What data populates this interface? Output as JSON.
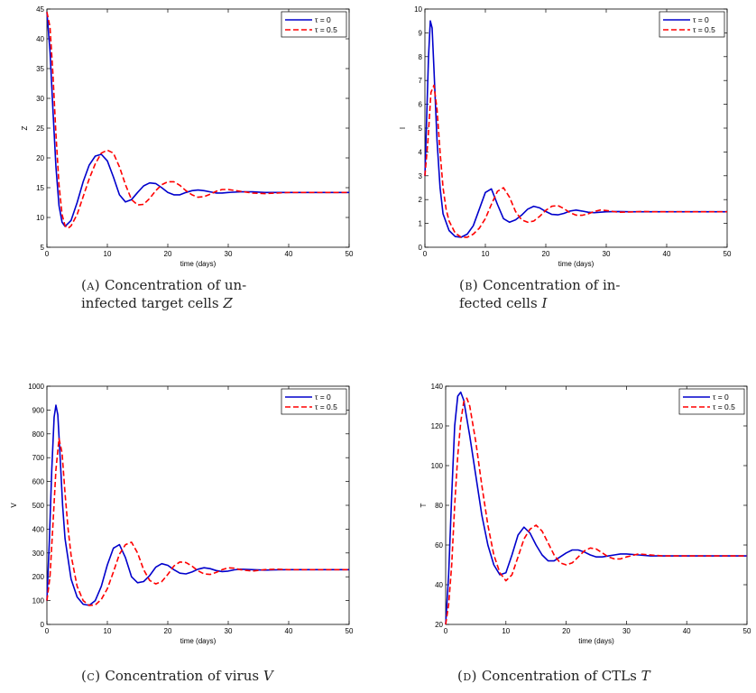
{
  "chart_data": [
    {
      "type": "line",
      "panel_tag": "(a)",
      "caption_lines": [
        "Concentration of un-",
        "infected target cells"
      ],
      "caption_var": "Z",
      "xlabel": "time (days)",
      "ylabel": "Z",
      "xlim": [
        0,
        50
      ],
      "ylim": [
        5,
        45
      ],
      "xticks": [
        0,
        10,
        20,
        30,
        40,
        50
      ],
      "yticks": [
        5,
        10,
        15,
        20,
        25,
        30,
        35,
        40,
        45
      ],
      "legend_position": "top-right",
      "series": [
        {
          "name": "τ = 0",
          "color": "#0000cc",
          "style": "solid",
          "x": [
            0,
            0.5,
            1,
            1.5,
            2,
            2.5,
            3,
            4,
            5,
            6,
            7,
            8,
            9,
            10,
            11,
            12,
            13,
            14,
            15,
            16,
            17,
            18,
            19,
            20,
            21,
            22,
            23,
            24,
            25,
            26,
            27,
            28,
            29,
            30,
            32,
            34,
            36,
            38,
            40,
            42,
            44,
            46,
            48,
            50
          ],
          "y": [
            44.5,
            38,
            28,
            18.5,
            12,
            9.2,
            8.5,
            9.5,
            12.5,
            16,
            18.8,
            20.3,
            20.6,
            19.5,
            16.8,
            13.8,
            12.6,
            13,
            14.2,
            15.3,
            15.8,
            15.7,
            15,
            14.2,
            13.8,
            13.8,
            14.2,
            14.5,
            14.6,
            14.5,
            14.3,
            14.1,
            14.1,
            14.2,
            14.3,
            14.3,
            14.2,
            14.2,
            14.2,
            14.2,
            14.2,
            14.2,
            14.2,
            14.2
          ]
        },
        {
          "name": "τ = 0.5",
          "color": "#ff0000",
          "style": "dashed",
          "x": [
            0,
            0.5,
            1,
            1.5,
            2,
            2.5,
            3,
            3.5,
            4,
            5,
            6,
            7,
            8,
            9,
            10,
            11,
            12,
            13,
            14,
            15,
            16,
            17,
            18,
            19,
            20,
            21,
            22,
            23,
            24,
            25,
            26,
            27,
            28,
            29,
            30,
            32,
            34,
            36,
            38,
            40,
            42,
            44,
            46,
            48,
            50
          ],
          "y": [
            44.5,
            42,
            34,
            24,
            15.5,
            10.5,
            8.6,
            8.2,
            8.6,
            10.5,
            13.5,
            16.5,
            19,
            20.8,
            21.3,
            20.8,
            18.5,
            15.5,
            13,
            12.1,
            12.2,
            13.2,
            14.5,
            15.5,
            16,
            16,
            15.4,
            14.5,
            13.8,
            13.4,
            13.5,
            13.9,
            14.4,
            14.7,
            14.7,
            14.4,
            14.1,
            14,
            14.1,
            14.2,
            14.2,
            14.2,
            14.2,
            14.2,
            14.2
          ]
        }
      ]
    },
    {
      "type": "line",
      "panel_tag": "(b)",
      "caption_lines": [
        "Concentration of in-",
        "fected cells"
      ],
      "caption_var": "I",
      "xlabel": "time (days)",
      "ylabel": "I",
      "xlim": [
        0,
        50
      ],
      "ylim": [
        0,
        10
      ],
      "xticks": [
        0,
        10,
        20,
        30,
        40,
        50
      ],
      "yticks": [
        0,
        1,
        2,
        3,
        4,
        5,
        6,
        7,
        8,
        9,
        10
      ],
      "legend_position": "top-right",
      "series": [
        {
          "name": "τ = 0",
          "color": "#0000cc",
          "style": "solid",
          "x": [
            0,
            0.3,
            0.6,
            0.9,
            1.2,
            1.5,
            2,
            2.5,
            3,
            4,
            5,
            6,
            7,
            8,
            9,
            10,
            11,
            12,
            13,
            14,
            15,
            16,
            17,
            18,
            19,
            20,
            21,
            22,
            23,
            24,
            25,
            26,
            27,
            28,
            29,
            30,
            32,
            34,
            36,
            38,
            40,
            44,
            48,
            50
          ],
          "y": [
            3,
            5.5,
            8,
            9.5,
            9.2,
            7.5,
            4.5,
            2.5,
            1.4,
            0.7,
            0.45,
            0.42,
            0.55,
            0.9,
            1.6,
            2.3,
            2.45,
            1.8,
            1.2,
            1.05,
            1.15,
            1.35,
            1.6,
            1.72,
            1.65,
            1.5,
            1.38,
            1.36,
            1.42,
            1.52,
            1.56,
            1.52,
            1.47,
            1.45,
            1.47,
            1.49,
            1.5,
            1.49,
            1.49,
            1.49,
            1.49,
            1.49,
            1.49,
            1.49
          ]
        },
        {
          "name": "τ = 0.5",
          "color": "#ff0000",
          "style": "dashed",
          "x": [
            0,
            0.5,
            1,
            1.5,
            2,
            2.5,
            3,
            3.5,
            4,
            5,
            6,
            7,
            8,
            9,
            10,
            11,
            12,
            13,
            14,
            15,
            16,
            17,
            18,
            19,
            20,
            21,
            22,
            23,
            24,
            25,
            26,
            27,
            28,
            29,
            30,
            32,
            34,
            36,
            38,
            40,
            44,
            48,
            50
          ],
          "y": [
            3,
            4.5,
            6.5,
            6.8,
            5.8,
            4,
            2.5,
            1.6,
            1.1,
            0.6,
            0.42,
            0.42,
            0.55,
            0.8,
            1.2,
            1.8,
            2.35,
            2.5,
            2.1,
            1.5,
            1.15,
            1.05,
            1.1,
            1.3,
            1.55,
            1.72,
            1.75,
            1.62,
            1.45,
            1.35,
            1.34,
            1.4,
            1.5,
            1.56,
            1.54,
            1.47,
            1.48,
            1.5,
            1.49,
            1.49,
            1.49,
            1.49,
            1.49
          ]
        }
      ]
    },
    {
      "type": "line",
      "panel_tag": "(c)",
      "caption_lines": [
        "Concentration of virus"
      ],
      "caption_var": "V",
      "xlabel": "time (days)",
      "ylabel": "V",
      "xlim": [
        0,
        50
      ],
      "ylim": [
        0,
        1000
      ],
      "xticks": [
        0,
        10,
        20,
        30,
        40,
        50
      ],
      "yticks": [
        0,
        100,
        200,
        300,
        400,
        500,
        600,
        700,
        800,
        900,
        1000
      ],
      "legend_position": "top-right",
      "series": [
        {
          "name": "τ = 0",
          "color": "#0000cc",
          "style": "solid",
          "x": [
            0,
            0.4,
            0.8,
            1.2,
            1.5,
            1.8,
            2.2,
            2.6,
            3,
            4,
            5,
            6,
            7,
            8,
            9,
            10,
            11,
            12,
            13,
            14,
            15,
            16,
            17,
            18,
            19,
            20,
            21,
            22,
            23,
            24,
            25,
            26,
            27,
            28,
            29,
            30,
            31,
            32,
            34,
            36,
            38,
            40,
            44,
            48,
            50
          ],
          "y": [
            100,
            350,
            650,
            870,
            920,
            880,
            700,
            500,
            360,
            190,
            115,
            85,
            80,
            100,
            160,
            250,
            320,
            335,
            280,
            200,
            175,
            180,
            205,
            240,
            255,
            248,
            230,
            215,
            212,
            220,
            232,
            238,
            234,
            226,
            222,
            224,
            229,
            232,
            230,
            228,
            229,
            230,
            230,
            230,
            230
          ]
        },
        {
          "name": "τ = 0.5",
          "color": "#ff0000",
          "style": "dashed",
          "x": [
            0,
            0.5,
            1,
            1.5,
            2,
            2.5,
            3,
            3.5,
            4,
            5,
            6,
            7,
            8,
            9,
            10,
            11,
            12,
            13,
            14,
            15,
            16,
            17,
            18,
            19,
            20,
            21,
            22,
            23,
            24,
            25,
            26,
            27,
            28,
            29,
            30,
            31,
            32,
            34,
            36,
            38,
            40,
            44,
            48,
            50
          ],
          "y": [
            100,
            200,
            420,
            650,
            780,
            720,
            550,
            400,
            290,
            160,
            100,
            80,
            82,
            105,
            150,
            220,
            295,
            335,
            345,
            300,
            230,
            185,
            170,
            180,
            210,
            245,
            262,
            260,
            245,
            225,
            212,
            210,
            218,
            230,
            238,
            236,
            230,
            224,
            230,
            232,
            230,
            230,
            230,
            230
          ]
        }
      ]
    },
    {
      "type": "line",
      "panel_tag": "(d)",
      "caption_lines": [
        "Concentration of CTLs"
      ],
      "caption_var": "T",
      "xlabel": "time (days)",
      "ylabel": "T",
      "xlim": [
        0,
        50
      ],
      "ylim": [
        20,
        140
      ],
      "xticks": [
        0,
        10,
        20,
        30,
        40,
        50
      ],
      "yticks": [
        20,
        40,
        60,
        80,
        100,
        120,
        140
      ],
      "legend_position": "top-right",
      "series": [
        {
          "name": "τ = 0",
          "color": "#0000cc",
          "style": "solid",
          "x": [
            0,
            0.5,
            1,
            1.5,
            2,
            2.5,
            3,
            4,
            5,
            6,
            7,
            8,
            9,
            10,
            11,
            12,
            13,
            14,
            15,
            16,
            17,
            18,
            19,
            20,
            21,
            22,
            23,
            24,
            25,
            26,
            27,
            28,
            29,
            30,
            32,
            34,
            36,
            38,
            40,
            44,
            48,
            50
          ],
          "y": [
            20,
            45,
            85,
            120,
            135,
            137,
            133,
            115,
            95,
            75,
            60,
            50,
            45,
            46,
            55,
            65,
            69,
            66,
            60,
            55,
            52,
            52,
            54,
            56,
            57.5,
            57.5,
            56.5,
            55,
            54,
            54,
            54.5,
            55,
            55.5,
            55.5,
            55,
            54.5,
            54.5,
            54.5,
            54.5,
            54.5,
            54.5,
            54.5
          ]
        },
        {
          "name": "τ = 0.5",
          "color": "#ff0000",
          "style": "dashed",
          "x": [
            0,
            0.5,
            1,
            1.5,
            2,
            2.5,
            3,
            3.5,
            4,
            5,
            6,
            7,
            8,
            9,
            10,
            11,
            12,
            13,
            14,
            15,
            16,
            17,
            18,
            19,
            20,
            21,
            22,
            23,
            24,
            25,
            26,
            27,
            28,
            29,
            30,
            32,
            34,
            36,
            38,
            40,
            44,
            48,
            50
          ],
          "y": [
            20,
            30,
            50,
            80,
            105,
            122,
            132,
            134,
            130,
            112,
            90,
            70,
            55,
            46,
            42,
            45,
            54,
            63,
            68,
            70,
            67,
            61,
            55,
            51,
            50,
            51,
            54,
            57,
            58.5,
            58,
            56,
            54,
            53,
            53,
            54,
            55.5,
            55,
            54.5,
            54.5,
            54.5,
            54.5,
            54.5,
            54.5
          ]
        }
      ]
    }
  ]
}
